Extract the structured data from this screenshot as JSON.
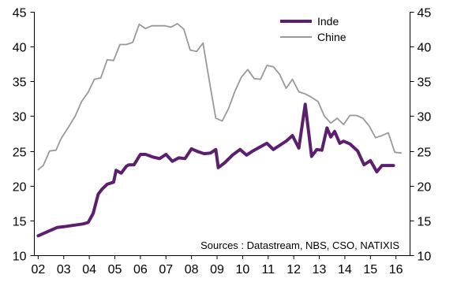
{
  "chart_data": {
    "type": "line",
    "title": "",
    "xlabel": "",
    "ylabel": "",
    "x_tick_labels": [
      "02",
      "03",
      "04",
      "05",
      "06",
      "07",
      "08",
      "09",
      "10",
      "11",
      "12",
      "13",
      "14",
      "15",
      "16"
    ],
    "x_tick_values": [
      2002,
      2003,
      2004,
      2005,
      2006,
      2007,
      2008,
      2009,
      2010,
      2011,
      2012,
      2013,
      2014,
      2015,
      2016
    ],
    "xlim": [
      2001.85,
      2016.55
    ],
    "ylim": [
      10,
      45
    ],
    "y_ticks_left": [
      "10",
      "15",
      "20",
      "25",
      "30",
      "35",
      "40",
      "45"
    ],
    "y_ticks_right": [
      "10",
      "15",
      "20",
      "25",
      "30",
      "35",
      "40",
      "45"
    ],
    "y_tick_values": [
      10,
      15,
      20,
      25,
      30,
      35,
      40,
      45
    ],
    "grid": false,
    "legend_position": "top-right",
    "annotation": "Sources : Datastream, NBS, CSO, NATIXIS",
    "series": [
      {
        "name": "Inde",
        "color": "#5b1f6e",
        "line_width": "thick",
        "x": [
          2002.0,
          2002.75,
          2003.0,
          2003.75,
          2003.95,
          2004.0,
          2004.15,
          2004.35,
          2004.5,
          2004.7,
          2004.95,
          2005.05,
          2005.25,
          2005.45,
          2005.55,
          2005.75,
          2006.0,
          2006.2,
          2006.5,
          2006.75,
          2007.0,
          2007.25,
          2007.5,
          2007.75,
          2008.0,
          2008.25,
          2008.5,
          2008.75,
          2008.95,
          2009.05,
          2009.3,
          2009.6,
          2009.9,
          2010.15,
          2010.4,
          2010.7,
          2010.95,
          2011.2,
          2011.45,
          2011.7,
          2011.95,
          2012.2,
          2012.45,
          2012.7,
          2012.9,
          2013.1,
          2013.3,
          2013.45,
          2013.6,
          2013.8,
          2013.95,
          2014.2,
          2014.5,
          2014.75,
          2015.0,
          2015.25,
          2015.45,
          2015.7,
          2015.9
        ],
        "values": [
          12.8,
          14.0,
          14.1,
          14.5,
          14.7,
          15.0,
          16.0,
          18.8,
          19.5,
          20.2,
          20.5,
          22.2,
          21.8,
          22.8,
          23.0,
          23.0,
          24.5,
          24.5,
          24.1,
          23.9,
          24.5,
          23.5,
          24.0,
          23.9,
          25.3,
          24.9,
          24.6,
          24.7,
          25.2,
          22.6,
          23.3,
          24.4,
          25.2,
          24.4,
          25.0,
          25.6,
          26.1,
          25.2,
          25.8,
          26.4,
          27.2,
          25.4,
          31.7,
          24.2,
          25.2,
          25.1,
          28.3,
          27.0,
          27.8,
          26.1,
          26.4,
          26.0,
          25.0,
          23.0,
          23.6,
          22.0,
          22.9,
          22.9,
          22.9
        ]
      },
      {
        "name": "Chine",
        "color": "#999999",
        "line_width": "thin",
        "x": [
          2002.0,
          2002.2,
          2002.45,
          2002.7,
          2002.9,
          2003.2,
          2003.45,
          2003.7,
          2003.95,
          2004.2,
          2004.45,
          2004.7,
          2004.95,
          2005.2,
          2005.45,
          2005.7,
          2005.95,
          2006.2,
          2006.45,
          2006.7,
          2006.95,
          2007.2,
          2007.45,
          2007.7,
          2007.95,
          2008.2,
          2008.45,
          2008.7,
          2008.95,
          2009.2,
          2009.45,
          2009.7,
          2009.95,
          2010.2,
          2010.45,
          2010.7,
          2010.95,
          2011.2,
          2011.45,
          2011.7,
          2011.95,
          2012.2,
          2012.45,
          2012.7,
          2012.95,
          2013.2,
          2013.45,
          2013.7,
          2013.95,
          2014.2,
          2014.45,
          2014.7,
          2014.95,
          2015.2,
          2015.45,
          2015.7,
          2015.95,
          2016.2
        ],
        "values": [
          22.3,
          22.9,
          25.0,
          25.1,
          26.8,
          28.5,
          30.0,
          32.1,
          33.4,
          35.3,
          35.5,
          38.1,
          38.0,
          40.3,
          40.3,
          40.6,
          43.2,
          42.6,
          43.0,
          43.0,
          43.0,
          42.8,
          43.3,
          42.5,
          39.5,
          39.3,
          40.5,
          35.0,
          29.7,
          29.3,
          31.1,
          33.6,
          35.6,
          36.7,
          35.4,
          35.3,
          37.3,
          37.1,
          36.0,
          34.0,
          35.3,
          33.5,
          33.2,
          32.7,
          32.1,
          30.0,
          29.0,
          29.7,
          28.8,
          30.1,
          30.1,
          29.7,
          28.6,
          26.9,
          27.2,
          27.6,
          24.8,
          24.7
        ]
      }
    ]
  }
}
